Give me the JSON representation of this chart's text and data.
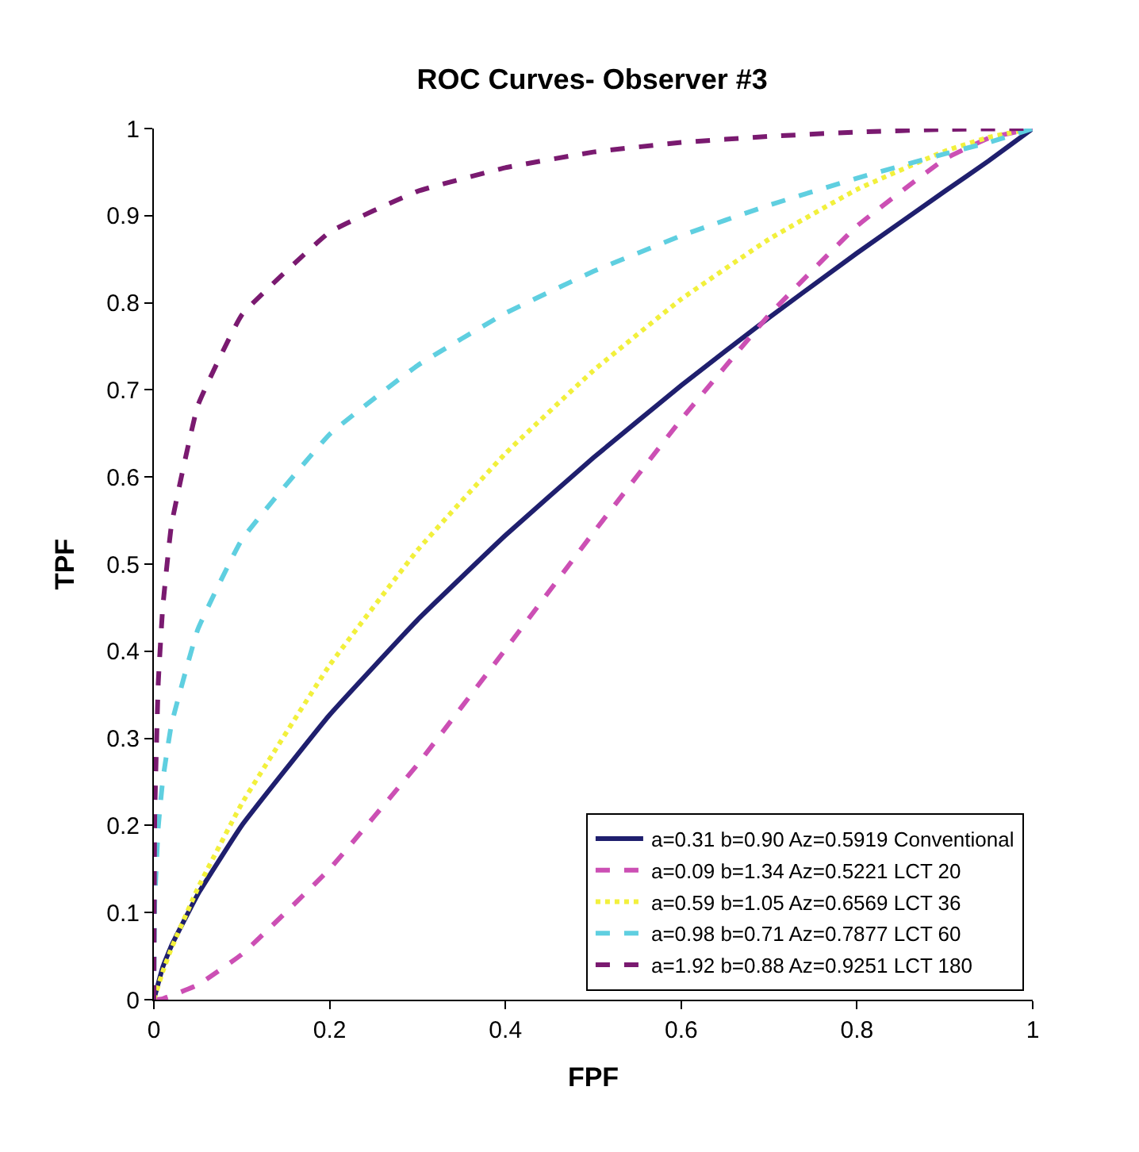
{
  "chart_data": {
    "type": "line",
    "title": "ROC Curves- Observer #3",
    "xlabel": "FPF",
    "ylabel": "TPF",
    "xlim": [
      0,
      1
    ],
    "ylim": [
      0,
      1
    ],
    "xticks": [
      0,
      0.2,
      0.4,
      0.6,
      0.8,
      1
    ],
    "yticks": [
      0,
      0.1,
      0.2,
      0.3,
      0.4,
      0.5,
      0.6,
      0.7,
      0.8,
      0.9,
      1
    ],
    "legend": "bottom right",
    "marker": "none",
    "series": [
      {
        "name": "a=0.31 b=0.90 Az=0.5919 Conventional",
        "color": "#1f1f6e",
        "line_style": "solid",
        "x": [
          0,
          0.01,
          0.02,
          0.05,
          0.1,
          0.2,
          0.3,
          0.4,
          0.5,
          0.6,
          0.7,
          0.8,
          0.9,
          0.95,
          1
        ],
        "values": [
          0,
          0.037,
          0.062,
          0.121,
          0.2,
          0.327,
          0.436,
          0.533,
          0.622,
          0.705,
          0.783,
          0.857,
          0.928,
          0.963,
          1
        ]
      },
      {
        "name": "a=0.09 b=1.34 Az=0.5221 LCT 20",
        "color": "#cc4fb4",
        "line_style": "dashed",
        "x": [
          0,
          0.01,
          0.05,
          0.1,
          0.2,
          0.3,
          0.4,
          0.5,
          0.6,
          0.7,
          0.8,
          0.9,
          0.95,
          1
        ],
        "values": [
          0,
          0.001,
          0.017,
          0.052,
          0.15,
          0.27,
          0.402,
          0.536,
          0.666,
          0.786,
          0.888,
          0.965,
          0.989,
          1
        ]
      },
      {
        "name": "a=0.59 b=1.05 Az=0.6569 LCT 36",
        "color": "#f2f03c",
        "line_style": "dotted",
        "x": [
          0,
          0.01,
          0.02,
          0.05,
          0.1,
          0.2,
          0.3,
          0.4,
          0.5,
          0.6,
          0.7,
          0.8,
          0.9,
          0.95,
          1
        ],
        "values": [
          0,
          0.032,
          0.059,
          0.128,
          0.225,
          0.384,
          0.516,
          0.627,
          0.722,
          0.804,
          0.873,
          0.93,
          0.974,
          0.99,
          1
        ]
      },
      {
        "name": "a=0.98 b=0.71 Az=0.7877 LCT 60",
        "color": "#5fcfe0",
        "line_style": "dashed",
        "x": [
          0,
          0.001,
          0.005,
          0.01,
          0.02,
          0.05,
          0.1,
          0.2,
          0.3,
          0.4,
          0.5,
          0.6,
          0.7,
          0.8,
          0.9,
          0.95,
          1
        ],
        "values": [
          0,
          0.112,
          0.198,
          0.251,
          0.316,
          0.425,
          0.528,
          0.649,
          0.728,
          0.788,
          0.836,
          0.877,
          0.912,
          0.943,
          0.971,
          0.984,
          1
        ]
      },
      {
        "name": "a=1.92 b=0.88 Az=0.9251 LCT 180",
        "color": "#7a1a70",
        "line_style": "dashed",
        "x": [
          0,
          0.001,
          0.005,
          0.01,
          0.02,
          0.05,
          0.1,
          0.2,
          0.3,
          0.4,
          0.5,
          0.6,
          0.7,
          0.8,
          0.9,
          1
        ],
        "values": [
          0,
          0.212,
          0.364,
          0.449,
          0.545,
          0.682,
          0.786,
          0.881,
          0.928,
          0.955,
          0.973,
          0.984,
          0.991,
          0.996,
          0.999,
          1
        ]
      }
    ]
  }
}
